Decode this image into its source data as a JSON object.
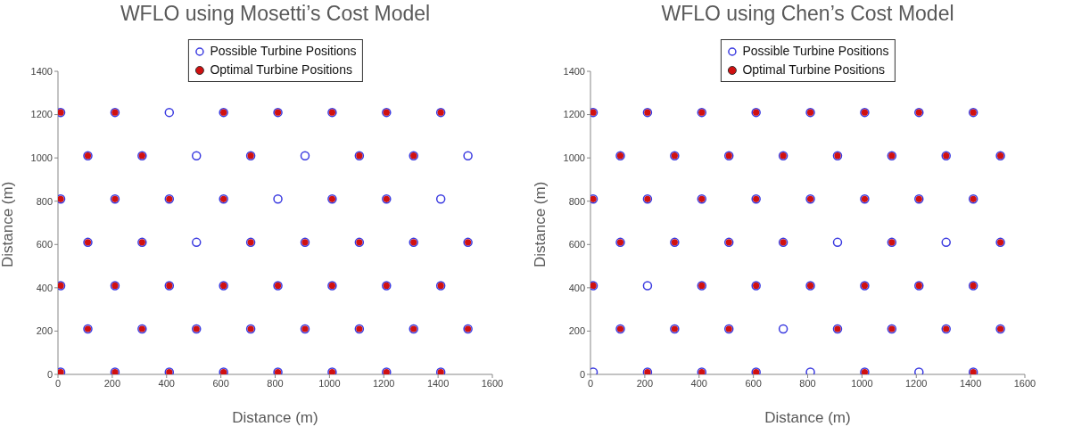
{
  "chart_data": [
    {
      "type": "scatter",
      "title": "WFLO using Mosetti’s Cost Model",
      "xlabel": "Distance (m)",
      "ylabel": "Distance (m)",
      "xlim": [
        0,
        1600
      ],
      "ylim": [
        0,
        1400
      ],
      "xticks": [
        0,
        200,
        400,
        600,
        800,
        1000,
        1200,
        1400,
        1600
      ],
      "yticks": [
        0,
        200,
        400,
        600,
        800,
        1000,
        1200,
        1400
      ],
      "legend": "top",
      "marker": "circle",
      "grid": false,
      "series": [
        {
          "name": "Possible Turbine Positions",
          "color": "#3a3ae0",
          "x": [
            10,
            210,
            410,
            610,
            810,
            1010,
            1210,
            1410,
            110,
            310,
            510,
            710,
            910,
            1110,
            1310,
            1510,
            10,
            210,
            410,
            610,
            810,
            1010,
            1210,
            1410,
            110,
            310,
            510,
            710,
            910,
            1110,
            1310,
            1510,
            10,
            210,
            410,
            610,
            810,
            1010,
            1210,
            1410,
            110,
            310,
            510,
            710,
            910,
            1110,
            1310,
            1510,
            10,
            210,
            410,
            610,
            810,
            1010,
            1210,
            1410
          ],
          "values": [
            1210,
            1210,
            1210,
            1210,
            1210,
            1210,
            1210,
            1210,
            1010,
            1010,
            1010,
            1010,
            1010,
            1010,
            1010,
            1010,
            810,
            810,
            810,
            810,
            810,
            810,
            810,
            810,
            610,
            610,
            610,
            610,
            610,
            610,
            610,
            610,
            410,
            410,
            410,
            410,
            410,
            410,
            410,
            410,
            210,
            210,
            210,
            210,
            210,
            210,
            210,
            210,
            10,
            10,
            10,
            10,
            10,
            10,
            10,
            10
          ]
        },
        {
          "name": "Optimal Turbine Positions",
          "color": "#d01010",
          "x": [
            10,
            210,
            610,
            810,
            1010,
            1210,
            1410,
            110,
            310,
            710,
            1110,
            1310,
            10,
            210,
            410,
            610,
            1010,
            1210,
            110,
            310,
            710,
            910,
            1110,
            1310,
            1510,
            10,
            210,
            410,
            610,
            810,
            1010,
            1210,
            1410,
            110,
            310,
            510,
            710,
            910,
            1110,
            1310,
            1510,
            10,
            210,
            410,
            610,
            810,
            1010,
            1210,
            1410
          ],
          "values": [
            1210,
            1210,
            1210,
            1210,
            1210,
            1210,
            1210,
            1010,
            1010,
            1010,
            1010,
            1010,
            810,
            810,
            810,
            810,
            810,
            810,
            610,
            610,
            610,
            610,
            610,
            610,
            610,
            410,
            410,
            410,
            410,
            410,
            410,
            410,
            410,
            210,
            210,
            210,
            210,
            210,
            210,
            210,
            210,
            10,
            10,
            10,
            10,
            10,
            10,
            10,
            10
          ]
        }
      ]
    },
    {
      "type": "scatter",
      "title": "WFLO using Chen’s Cost Model",
      "xlabel": "Distance (m)",
      "ylabel": "Distance (m)",
      "xlim": [
        0,
        1600
      ],
      "ylim": [
        0,
        1400
      ],
      "xticks": [
        0,
        200,
        400,
        600,
        800,
        1000,
        1200,
        1400,
        1600
      ],
      "yticks": [
        0,
        200,
        400,
        600,
        800,
        1000,
        1200,
        1400
      ],
      "legend": "top",
      "marker": "circle",
      "grid": false,
      "series": [
        {
          "name": "Possible Turbine Positions",
          "color": "#3a3ae0",
          "x": [
            10,
            210,
            410,
            610,
            810,
            1010,
            1210,
            1410,
            110,
            310,
            510,
            710,
            910,
            1110,
            1310,
            1510,
            10,
            210,
            410,
            610,
            810,
            1010,
            1210,
            1410,
            110,
            310,
            510,
            710,
            910,
            1110,
            1310,
            1510,
            10,
            210,
            410,
            610,
            810,
            1010,
            1210,
            1410,
            110,
            310,
            510,
            710,
            910,
            1110,
            1310,
            1510,
            10,
            210,
            410,
            610,
            810,
            1010,
            1210,
            1410
          ],
          "values": [
            1210,
            1210,
            1210,
            1210,
            1210,
            1210,
            1210,
            1210,
            1010,
            1010,
            1010,
            1010,
            1010,
            1010,
            1010,
            1010,
            810,
            810,
            810,
            810,
            810,
            810,
            810,
            810,
            610,
            610,
            610,
            610,
            610,
            610,
            610,
            610,
            410,
            410,
            410,
            410,
            410,
            410,
            410,
            410,
            210,
            210,
            210,
            210,
            210,
            210,
            210,
            210,
            10,
            10,
            10,
            10,
            10,
            10,
            10,
            10
          ]
        },
        {
          "name": "Optimal Turbine Positions",
          "color": "#d01010",
          "x": [
            10,
            210,
            410,
            610,
            810,
            1010,
            1210,
            1410,
            110,
            310,
            510,
            710,
            910,
            1110,
            1310,
            1510,
            10,
            210,
            410,
            610,
            810,
            1010,
            1210,
            1410,
            110,
            310,
            510,
            710,
            1110,
            1510,
            10,
            410,
            610,
            810,
            1010,
            1210,
            1410,
            110,
            310,
            510,
            910,
            1110,
            1310,
            1510,
            210,
            410,
            610,
            1010,
            1410
          ],
          "values": [
            1210,
            1210,
            1210,
            1210,
            1210,
            1210,
            1210,
            1210,
            1010,
            1010,
            1010,
            1010,
            1010,
            1010,
            1010,
            1010,
            810,
            810,
            810,
            810,
            810,
            810,
            810,
            810,
            610,
            610,
            610,
            610,
            610,
            610,
            410,
            410,
            410,
            410,
            410,
            410,
            410,
            210,
            210,
            210,
            210,
            210,
            210,
            210,
            10,
            10,
            10,
            10,
            10
          ]
        }
      ]
    }
  ]
}
